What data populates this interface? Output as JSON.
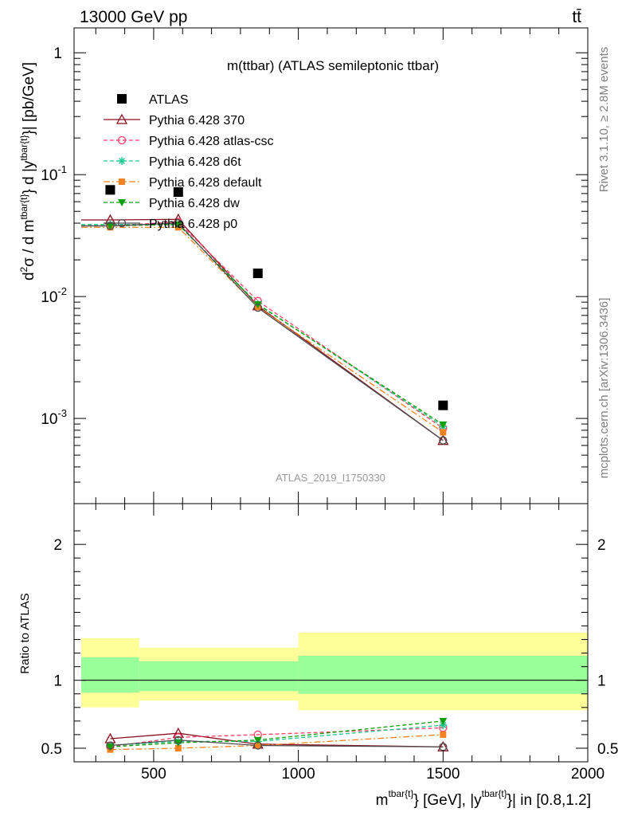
{
  "header": {
    "left": "13000 GeV pp",
    "right": "tt̄"
  },
  "side_labels": {
    "rivet": "Rivet 3.1.10, ≥ 2.8M events",
    "mcplots": "mcplots.cern.ch [arXiv:1306.3436]"
  },
  "colors": {
    "ATLAS": "#000000",
    "370": "#8b0f1f",
    "atlas-csc": "#ff3f6a",
    "d6t": "#17c98c",
    "default": "#f58220",
    "dw": "#0aa00a",
    "p0": "#4d4d4d",
    "band_inner": "#99ff99",
    "band_outer": "#ffff99"
  },
  "chart_data": [
    {
      "type": "scatter",
      "title": "m(ttbar) (ATLAS semileptonic ttbar)",
      "watermark": "ATLAS_2019_I1750330",
      "ylabel": "d²σ / d m^{tbar{t}} d |y^{tbar{t}}| [pb/GeV]",
      "yscale": "log",
      "xlim": [
        225,
        2000
      ],
      "ylim": [
        0.0002,
        1.6
      ],
      "y_tick_labels": [
        "1",
        "10^-1",
        "10^-2",
        "10^-3"
      ],
      "x_bins": [
        [
          250,
          450
        ],
        [
          450,
          700
        ],
        [
          700,
          1000
        ],
        [
          1000,
          2000
        ]
      ],
      "x": [
        350,
        585,
        860,
        1500
      ],
      "legend_position": "top-left",
      "series": [
        {
          "name": "ATLAS",
          "key": "ATLAS",
          "marker": "square",
          "values": [
            0.075,
            0.072,
            0.0155,
            0.00128
          ]
        },
        {
          "name": "Pythia 6.428 370",
          "key": "370",
          "marker": "triangle",
          "line": "solid",
          "values": [
            0.0425,
            0.043,
            0.0084,
            0.00066
          ]
        },
        {
          "name": "Pythia 6.428 atlas-csc",
          "key": "atlas-csc",
          "marker": "circle-open",
          "line": "dashed",
          "values": [
            0.038,
            0.041,
            0.0092,
            0.00083
          ]
        },
        {
          "name": "Pythia 6.428 d6t",
          "key": "d6t",
          "marker": "star",
          "line": "dashed",
          "values": [
            0.039,
            0.039,
            0.0087,
            0.00086
          ]
        },
        {
          "name": "Pythia 6.428 default",
          "key": "default",
          "marker": "square-small",
          "line": "dashdot",
          "values": [
            0.037,
            0.037,
            0.0082,
            0.00077
          ]
        },
        {
          "name": "Pythia 6.428 dw",
          "key": "dw",
          "marker": "triangle-down",
          "line": "dashed",
          "values": [
            0.038,
            0.039,
            0.0086,
            0.00089
          ]
        },
        {
          "name": "Pythia 6.428 p0",
          "key": "p0",
          "marker": "circle-open",
          "line": "solid",
          "values": [
            0.038,
            0.04,
            0.0081,
            0.00066
          ]
        }
      ]
    },
    {
      "type": "line",
      "ylabel": "Ratio to ATLAS",
      "xlabel": "m^{tbar{t}} [GeV], |y^{tbar{t}}| in [0.8,1.2]",
      "xlim": [
        225,
        2000
      ],
      "ylim": [
        0.4,
        2.3
      ],
      "x_tick_labels": [
        "500",
        "1000",
        "1500",
        "2000"
      ],
      "y_tick_labels": [
        "0.5",
        "1",
        "2"
      ],
      "x": [
        350,
        585,
        860,
        1500
      ],
      "bands": [
        {
          "x0": 250,
          "x1": 450,
          "inner": [
            0.91,
            1.17
          ],
          "outer": [
            0.8,
            1.31
          ]
        },
        {
          "x0": 450,
          "x1": 1000,
          "inner": [
            0.92,
            1.14
          ],
          "outer": [
            0.85,
            1.24
          ]
        },
        {
          "x0": 1000,
          "x1": 2000,
          "inner": [
            0.9,
            1.18
          ],
          "outer": [
            0.78,
            1.35
          ]
        }
      ],
      "series": [
        {
          "key": "370",
          "values": [
            0.57,
            0.61,
            0.53,
            0.51
          ]
        },
        {
          "key": "atlas-csc",
          "values": [
            0.51,
            0.58,
            0.6,
            0.65
          ]
        },
        {
          "key": "d6t",
          "values": [
            0.52,
            0.55,
            0.55,
            0.67
          ]
        },
        {
          "key": "default",
          "values": [
            0.49,
            0.5,
            0.52,
            0.6
          ]
        },
        {
          "key": "dw",
          "values": [
            0.51,
            0.54,
            0.56,
            0.7
          ]
        },
        {
          "key": "p0",
          "values": [
            0.52,
            0.56,
            0.52,
            0.51
          ]
        }
      ]
    }
  ]
}
